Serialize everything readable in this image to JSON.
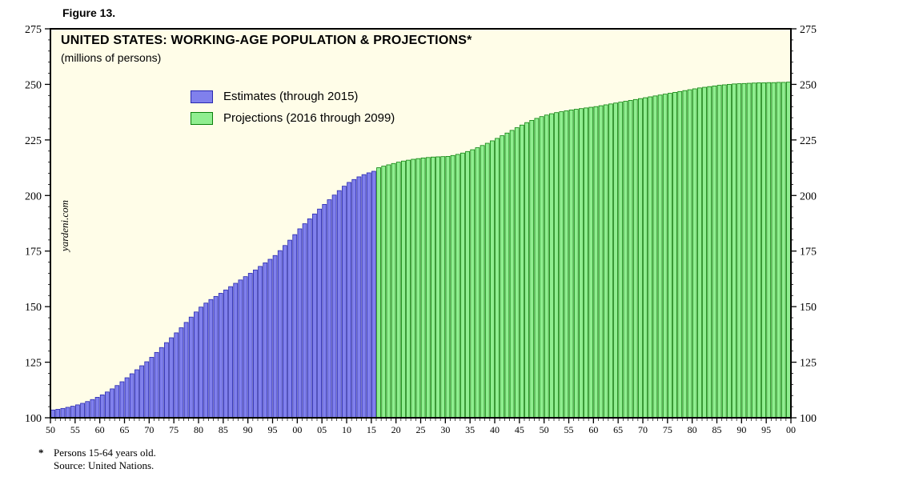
{
  "figure_label": "Figure 13.",
  "chart": {
    "title": "UNITED STATES: WORKING-AGE POPULATION & PROJECTIONS*",
    "subtitle": "(millions of persons)",
    "watermark": "yardeni.com",
    "background": "#fffde8",
    "frame_color": "#000000",
    "legend": [
      {
        "label": "Estimates (through 2015)",
        "color": "#8080ec",
        "border": "#2828b0"
      },
      {
        "label": "Projections (2016 through 2099)",
        "color": "#90ee90",
        "border": "#0a800a"
      }
    ]
  },
  "footnote": {
    "marker": "*",
    "line1": "Persons 15-64 years old.",
    "line2": "Source: United Nations."
  },
  "chart_data": {
    "type": "bar",
    "title": "UNITED STATES: WORKING-AGE POPULATION & PROJECTIONS*",
    "subtitle": "(millions of persons)",
    "xlabel": "",
    "ylabel": "millions of persons",
    "ylim": [
      100,
      275
    ],
    "y_ticks": [
      100,
      125,
      150,
      175,
      200,
      225,
      250,
      275
    ],
    "x_start_year": 1950,
    "x_end_year": 2099,
    "x_tick_step_years": 5,
    "x_tick_labels": [
      "50",
      "55",
      "60",
      "65",
      "70",
      "75",
      "80",
      "85",
      "90",
      "95",
      "00",
      "05",
      "10",
      "15",
      "20",
      "25",
      "30",
      "35",
      "40",
      "45",
      "50",
      "55",
      "60",
      "65",
      "70",
      "75",
      "80",
      "85",
      "90",
      "95",
      "00"
    ],
    "grid": false,
    "legend_position": "upper-left",
    "series": [
      {
        "name": "Estimates (through 2015)",
        "start_year": 1950,
        "end_year": 2015,
        "values": [
          103.5,
          103.8,
          104.2,
          104.7,
          105.2,
          105.8,
          106.5,
          107.3,
          108.2,
          109.2,
          110.3,
          111.6,
          113.0,
          114.5,
          116.2,
          118.0,
          119.8,
          121.6,
          123.4,
          125.2,
          127.2,
          129.4,
          131.6,
          133.8,
          136.0,
          138.2,
          140.5,
          142.9,
          145.3,
          147.6,
          149.8,
          151.6,
          153.2,
          154.6,
          156.0,
          157.5,
          159.0,
          160.5,
          162.0,
          163.5,
          165.0,
          166.5,
          168.1,
          169.7,
          171.3,
          173.0,
          175.2,
          177.5,
          179.9,
          182.4,
          185.0,
          187.3,
          189.5,
          191.7,
          193.9,
          196.0,
          198.1,
          200.2,
          202.2,
          204.2,
          205.9,
          207.2,
          208.4,
          209.4,
          210.2,
          210.9
        ]
      },
      {
        "name": "Projections (2016 through 2099)",
        "start_year": 2016,
        "end_year": 2099,
        "values": [
          212.5,
          213.2,
          213.8,
          214.4,
          215.0,
          215.5,
          215.9,
          216.3,
          216.6,
          216.9,
          217.1,
          217.3,
          217.4,
          217.5,
          217.6,
          218.0,
          218.5,
          219.1,
          219.8,
          220.6,
          221.5,
          222.5,
          223.5,
          224.6,
          225.7,
          226.9,
          228.1,
          229.3,
          230.5,
          231.7,
          232.8,
          233.8,
          234.7,
          235.5,
          236.2,
          236.8,
          237.3,
          237.7,
          238.1,
          238.5,
          238.8,
          239.1,
          239.4,
          239.7,
          240.0,
          240.4,
          240.8,
          241.2,
          241.6,
          242.0,
          242.4,
          242.8,
          243.2,
          243.6,
          244.0,
          244.4,
          244.8,
          245.2,
          245.6,
          246.0,
          246.4,
          246.8,
          247.2,
          247.6,
          248.0,
          248.4,
          248.7,
          249.0,
          249.3,
          249.6,
          249.8,
          250.0,
          250.2,
          250.3,
          250.4,
          250.5,
          250.6,
          250.7,
          250.7,
          250.8,
          250.8,
          250.9,
          250.9,
          251.0
        ]
      }
    ]
  }
}
